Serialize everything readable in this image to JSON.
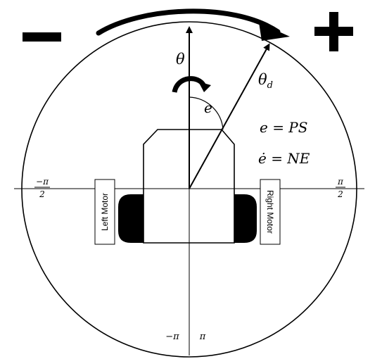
{
  "signs": {
    "minus": "−",
    "plus": "+"
  },
  "symbols": {
    "theta": "θ",
    "theta_d_base": "θ",
    "theta_d_sub": "d",
    "error": "e"
  },
  "equations": {
    "e_eq": "e = PS",
    "edot_eq": "ė = NE"
  },
  "axis_labels": {
    "left_num": "−π",
    "left_den": "2",
    "right_num": "π",
    "right_den": "2",
    "bottom_left": "−π",
    "bottom_right": "π"
  },
  "motors": {
    "left": "Left Motor",
    "right": "Right Motor"
  }
}
